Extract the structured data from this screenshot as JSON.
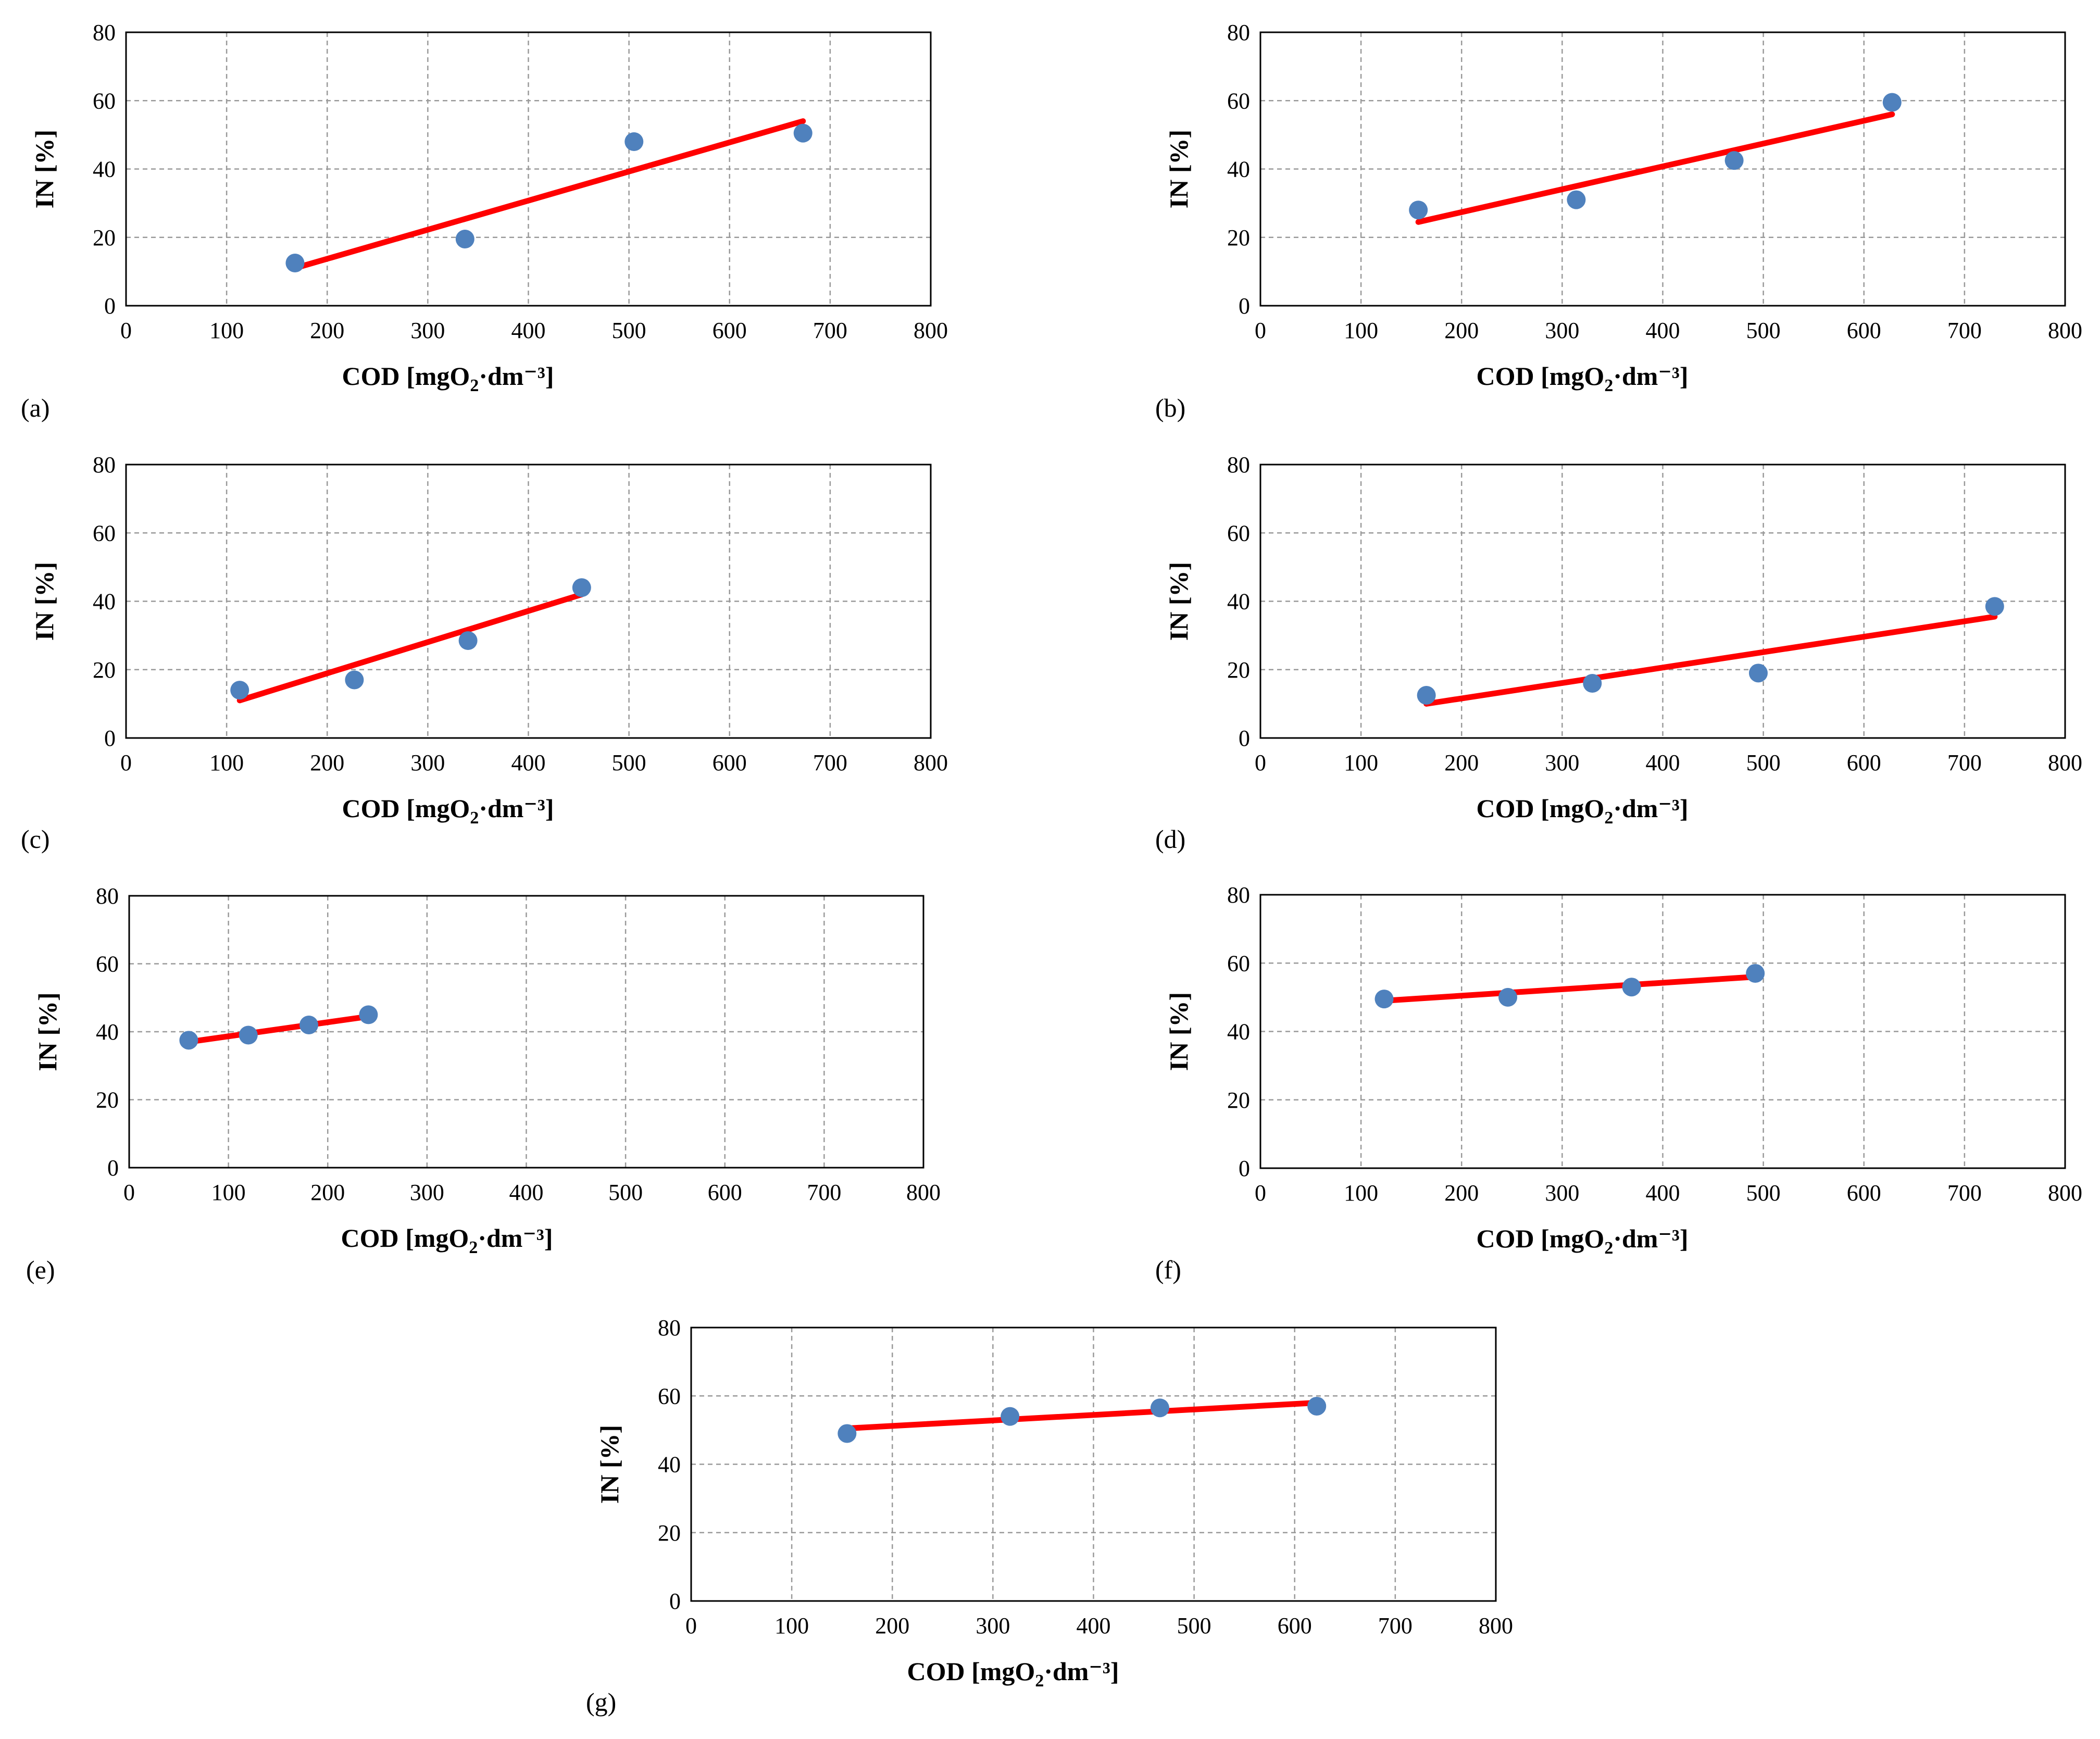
{
  "colors": {
    "point": "#4f81bd",
    "trend": "#ff0000",
    "grid": "#9a9a9a",
    "frame": "#000000"
  },
  "chart_data": [
    {
      "type": "scatter",
      "label": "(a)",
      "xlabel": "COD [mgO2·dm⁻³]",
      "ylabel": "IN [%]",
      "xlim": [
        0,
        800
      ],
      "ylim": [
        0,
        80
      ],
      "xticks": [
        0,
        100,
        200,
        300,
        400,
        500,
        600,
        700,
        800
      ],
      "yticks": [
        0,
        20,
        40,
        60,
        80
      ],
      "points": [
        {
          "x": 168,
          "y": 12.5
        },
        {
          "x": 337,
          "y": 19.5
        },
        {
          "x": 505,
          "y": 48
        },
        {
          "x": 673,
          "y": 50.5
        }
      ],
      "trendline": [
        {
          "x": 168,
          "y": 11
        },
        {
          "x": 673,
          "y": 54
        }
      ]
    },
    {
      "type": "scatter",
      "label": "(b)",
      "xlabel": "COD [mgO2·dm⁻³]",
      "ylabel": "IN [%]",
      "xlim": [
        0,
        800
      ],
      "ylim": [
        0,
        80
      ],
      "xticks": [
        0,
        100,
        200,
        300,
        400,
        500,
        600,
        700,
        800
      ],
      "yticks": [
        0,
        20,
        40,
        60,
        80
      ],
      "points": [
        {
          "x": 157,
          "y": 28
        },
        {
          "x": 314,
          "y": 31
        },
        {
          "x": 471,
          "y": 42.5
        },
        {
          "x": 628,
          "y": 59.5
        }
      ],
      "trendline": [
        {
          "x": 157,
          "y": 24.5
        },
        {
          "x": 628,
          "y": 56
        }
      ]
    },
    {
      "type": "scatter",
      "label": "(c)",
      "xlabel": "COD [mgO2·dm⁻³]",
      "ylabel": "IN [%]",
      "xlim": [
        0,
        800
      ],
      "ylim": [
        0,
        80
      ],
      "xticks": [
        0,
        100,
        200,
        300,
        400,
        500,
        600,
        700,
        800
      ],
      "yticks": [
        0,
        20,
        40,
        60,
        80
      ],
      "points": [
        {
          "x": 113,
          "y": 14
        },
        {
          "x": 227,
          "y": 17
        },
        {
          "x": 340,
          "y": 28.5
        },
        {
          "x": 453,
          "y": 44
        }
      ],
      "trendline": [
        {
          "x": 113,
          "y": 11
        },
        {
          "x": 453,
          "y": 42
        }
      ]
    },
    {
      "type": "scatter",
      "label": "(d)",
      "xlabel": "COD [mgO2·dm⁻³]",
      "ylabel": "IN [%]",
      "xlim": [
        0,
        800
      ],
      "ylim": [
        0,
        80
      ],
      "xticks": [
        0,
        100,
        200,
        300,
        400,
        500,
        600,
        700,
        800
      ],
      "yticks": [
        0,
        20,
        40,
        60,
        80
      ],
      "points": [
        {
          "x": 165,
          "y": 12.5
        },
        {
          "x": 330,
          "y": 16
        },
        {
          "x": 495,
          "y": 19
        },
        {
          "x": 730,
          "y": 38.5
        }
      ],
      "trendline": [
        {
          "x": 165,
          "y": 10
        },
        {
          "x": 730,
          "y": 35.5
        }
      ]
    },
    {
      "type": "scatter",
      "label": "(e)",
      "xlabel": "COD [mgO2·dm⁻³]",
      "ylabel": "IN [%]",
      "xlim": [
        0,
        800
      ],
      "ylim": [
        0,
        80
      ],
      "xticks": [
        0,
        100,
        200,
        300,
        400,
        500,
        600,
        700,
        800
      ],
      "yticks": [
        0,
        20,
        40,
        60,
        80
      ],
      "points": [
        {
          "x": 60,
          "y": 37.5
        },
        {
          "x": 120,
          "y": 39
        },
        {
          "x": 181,
          "y": 42
        },
        {
          "x": 241,
          "y": 45
        }
      ],
      "trendline": [
        {
          "x": 60,
          "y": 37
        },
        {
          "x": 241,
          "y": 44.5
        }
      ]
    },
    {
      "type": "scatter",
      "label": "(f)",
      "xlabel": "COD [mgO2·dm⁻³]",
      "ylabel": "IN [%]",
      "xlim": [
        0,
        800
      ],
      "ylim": [
        0,
        80
      ],
      "xticks": [
        0,
        100,
        200,
        300,
        400,
        500,
        600,
        700,
        800
      ],
      "yticks": [
        0,
        20,
        40,
        60,
        80
      ],
      "points": [
        {
          "x": 123,
          "y": 49.5
        },
        {
          "x": 246,
          "y": 50
        },
        {
          "x": 369,
          "y": 53
        },
        {
          "x": 492,
          "y": 57
        }
      ],
      "trendline": [
        {
          "x": 123,
          "y": 49
        },
        {
          "x": 492,
          "y": 56
        }
      ]
    },
    {
      "type": "scatter",
      "label": "(g)",
      "xlabel": "COD [mgO2·dm⁻³]",
      "ylabel": "IN [%]",
      "xlim": [
        0,
        800
      ],
      "ylim": [
        0,
        80
      ],
      "xticks": [
        0,
        100,
        200,
        300,
        400,
        500,
        600,
        700,
        800
      ],
      "yticks": [
        0,
        20,
        40,
        60,
        80
      ],
      "points": [
        {
          "x": 155,
          "y": 49
        },
        {
          "x": 317,
          "y": 54
        },
        {
          "x": 466,
          "y": 56.5
        },
        {
          "x": 622,
          "y": 57
        }
      ],
      "trendline": [
        {
          "x": 155,
          "y": 50.5
        },
        {
          "x": 622,
          "y": 58
        }
      ]
    }
  ]
}
